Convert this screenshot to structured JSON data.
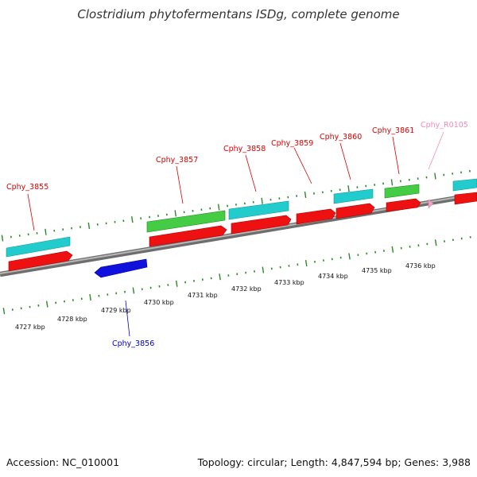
{
  "title": "Clostridium phytofermentans ISDg, complete genome",
  "footer": {
    "accession": "Accession: NC_010001",
    "summary": "Topology: circular; Length: 4,847,594 bp; Genes: 3,988"
  },
  "colors": {
    "tick": "#2a8a2a",
    "backbone": "#808080",
    "red_gene": "#ee1111",
    "cyan_gene": "#22cccc",
    "green_gene": "#44cc44",
    "blue_gene": "#1111dd",
    "rna_gene": "#f5a0c8",
    "label_red": "#dd0000",
    "label_blue": "#0000cc",
    "label_pink": "#f08cb8"
  },
  "scale_labels": [
    "4727 kbp",
    "4728 kbp",
    "4729 kbp",
    "4730 kbp",
    "4731 kbp",
    "4732 kbp",
    "4733 kbp",
    "4734 kbp",
    "4735 kbp",
    "4736 kbp"
  ],
  "gene_labels": [
    "Cphy_3855",
    "Cphy_3856",
    "Cphy_3857",
    "Cphy_3858",
    "Cphy_3859",
    "Cphy_3860",
    "Cphy_3861",
    "Cphy_R0105"
  ]
}
